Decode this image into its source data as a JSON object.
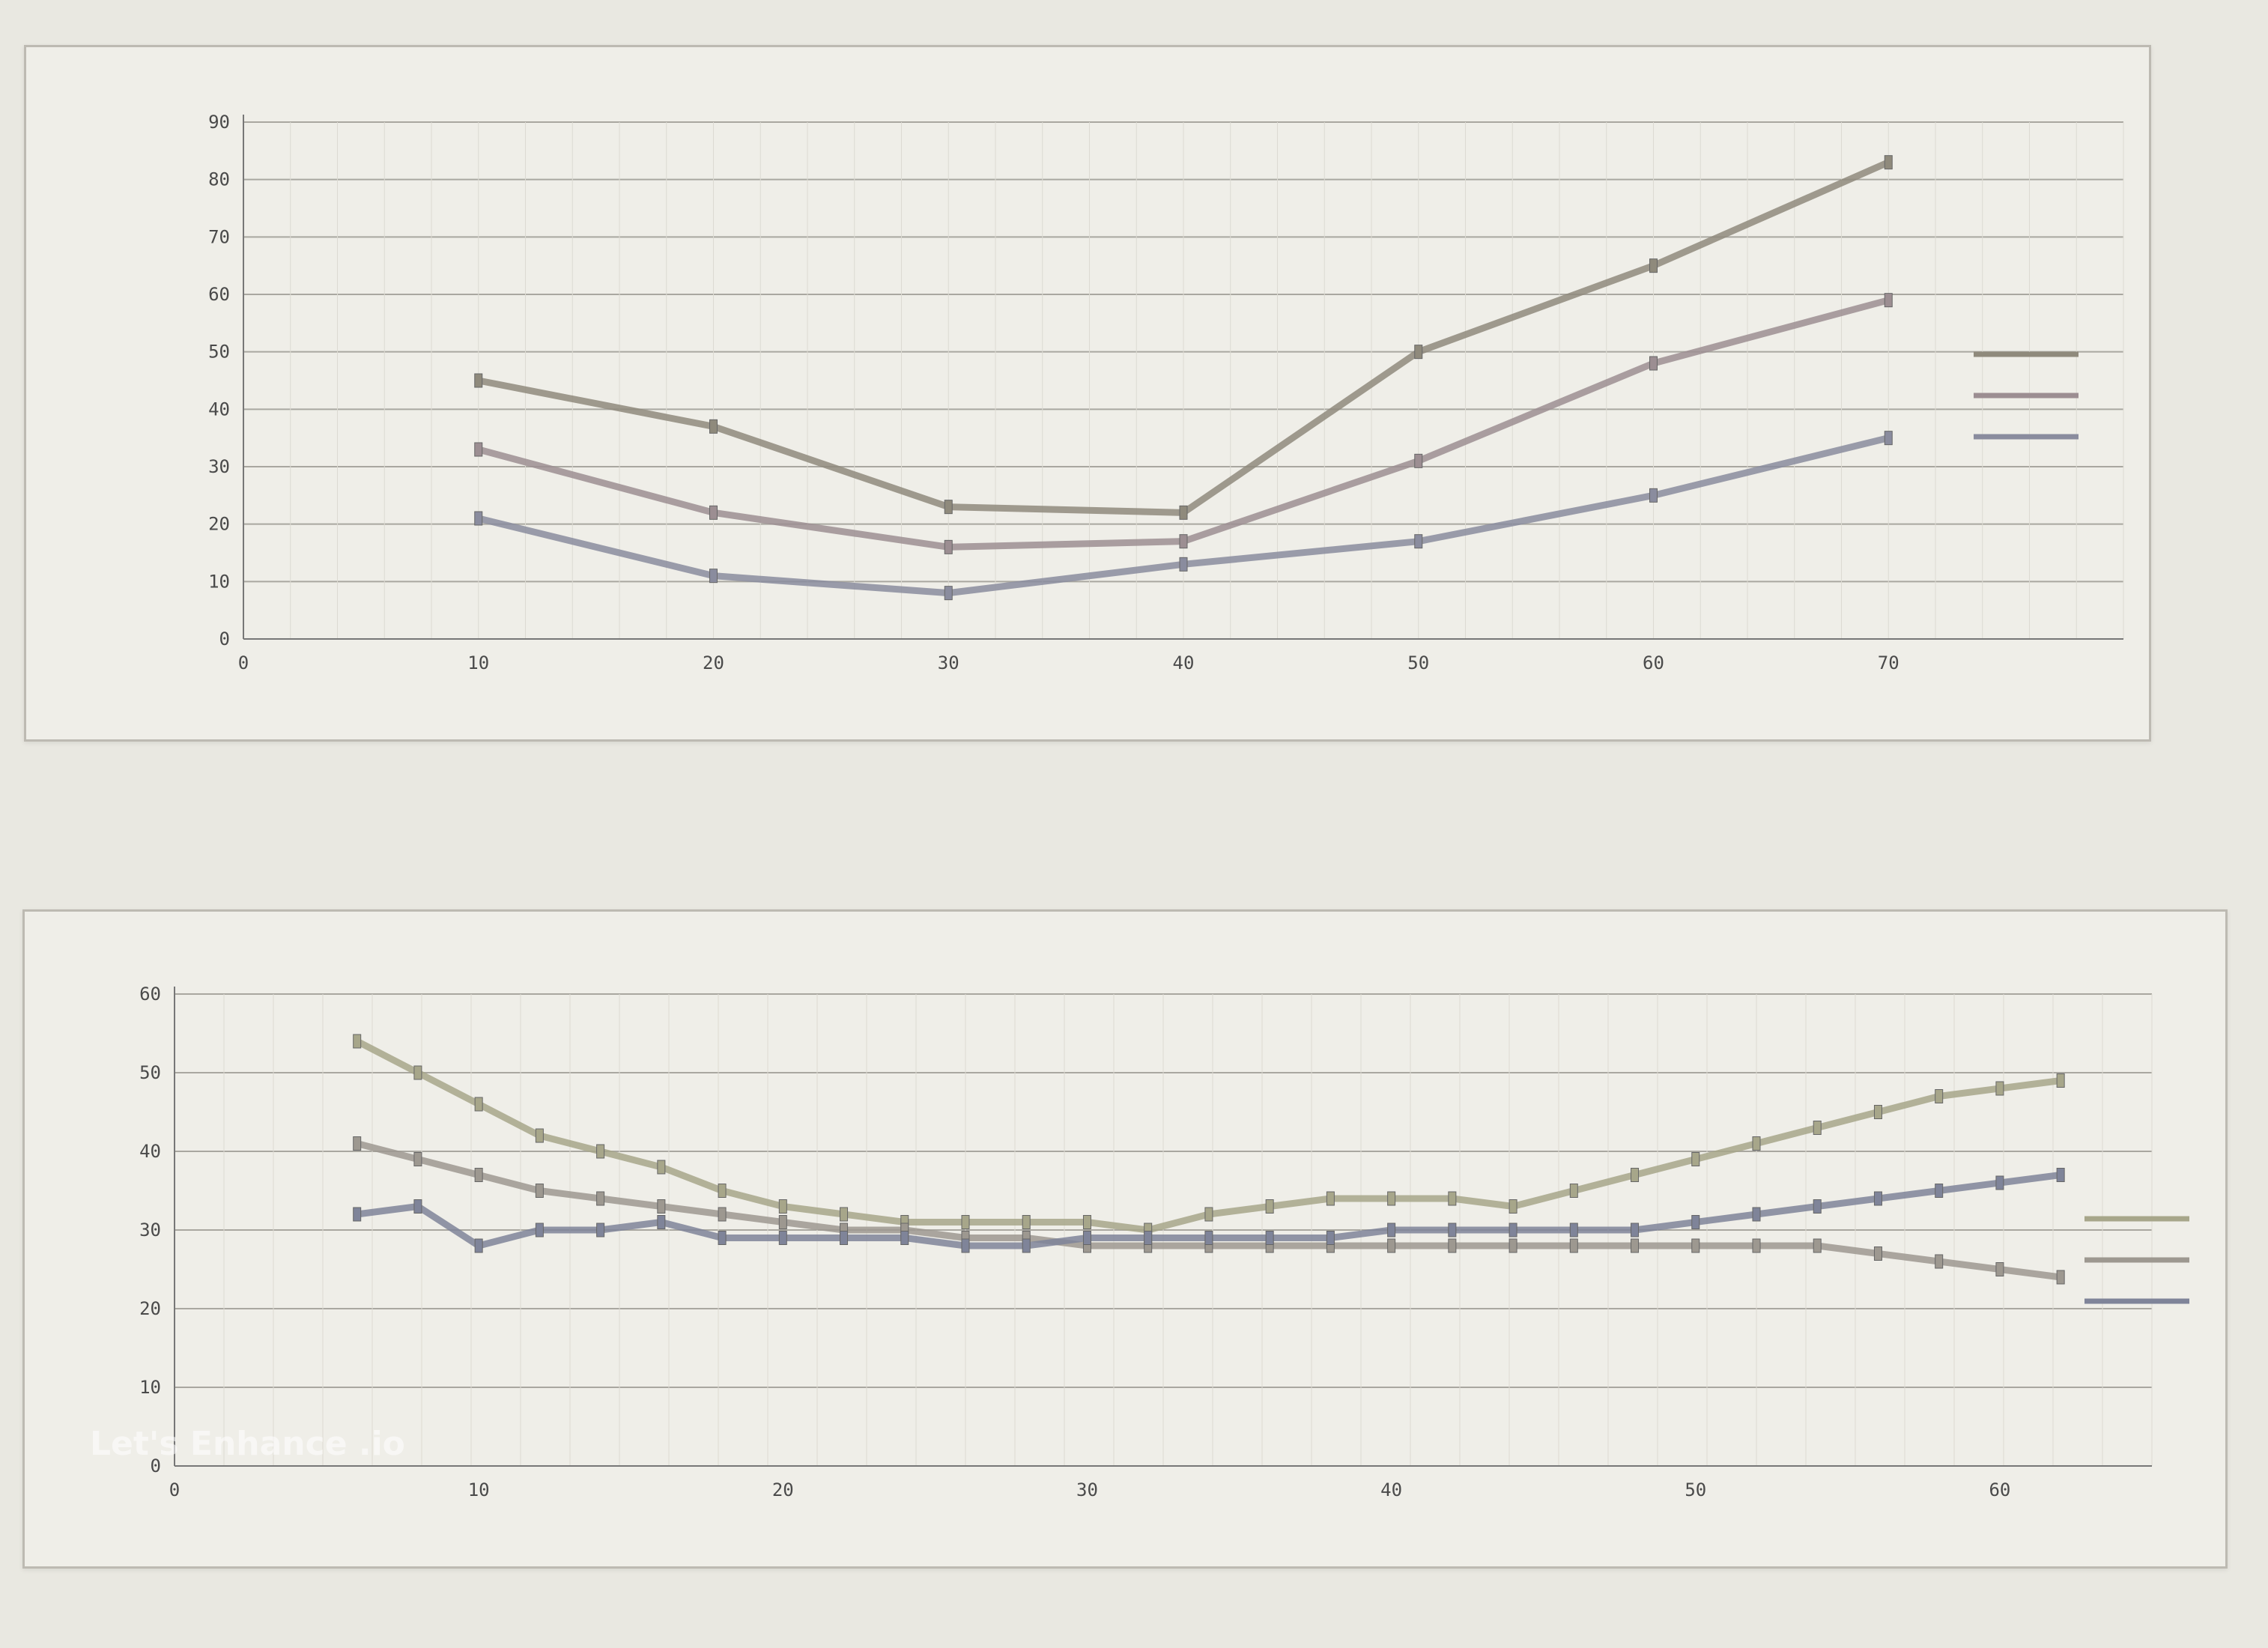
{
  "watermark": "Let's Enhance .io",
  "chart_data": [
    {
      "type": "line",
      "title": "",
      "xlabel": "",
      "ylabel": "",
      "x": [
        0,
        10,
        20,
        30,
        40,
        50,
        60,
        70
      ],
      "xlim": [
        0,
        80
      ],
      "ylim": [
        0,
        90
      ],
      "y_ticks": [
        0,
        10,
        20,
        30,
        40,
        50,
        60,
        70,
        80,
        90
      ],
      "grid": true,
      "legend_position": "right",
      "series": [
        {
          "color": "#8f8a7c",
          "x": [
            10,
            20,
            30,
            40,
            50,
            60,
            70
          ],
          "values": [
            45,
            37,
            23,
            22,
            50,
            65,
            83
          ]
        },
        {
          "color": "#9c8e92",
          "x": [
            10,
            20,
            30,
            40,
            50,
            60,
            70
          ],
          "values": [
            33,
            22,
            16,
            17,
            31,
            48,
            59
          ]
        },
        {
          "color": "#8a8c9e",
          "x": [
            10,
            20,
            30,
            40,
            50,
            60,
            70
          ],
          "values": [
            21,
            11,
            8,
            13,
            17,
            25,
            35
          ]
        }
      ]
    },
    {
      "type": "line",
      "title": "",
      "xlabel": "",
      "ylabel": "",
      "x": [
        0,
        10,
        20,
        30,
        40,
        50,
        60
      ],
      "xlim": [
        0,
        65
      ],
      "ylim": [
        0,
        60
      ],
      "y_ticks": [
        0,
        10,
        20,
        30,
        40,
        50,
        60
      ],
      "grid": true,
      "legend_position": "right",
      "series": [
        {
          "color": "#a7a68a",
          "x": [
            6,
            8,
            10,
            12,
            14,
            16,
            18,
            20,
            22,
            24,
            26,
            28,
            30,
            32,
            34,
            36,
            38,
            40,
            42,
            44,
            46,
            48,
            50,
            52,
            54,
            56,
            58,
            60,
            62
          ],
          "values": [
            54,
            50,
            46,
            42,
            40,
            38,
            35,
            33,
            32,
            31,
            31,
            31,
            31,
            30,
            32,
            33,
            34,
            34,
            34,
            33,
            35,
            37,
            39,
            41,
            43,
            45,
            47,
            48,
            49
          ]
        },
        {
          "color": "#9d9890",
          "x": [
            6,
            8,
            10,
            12,
            14,
            16,
            18,
            20,
            22,
            24,
            26,
            28,
            30,
            32,
            34,
            36,
            38,
            40,
            42,
            44,
            46,
            48,
            50,
            52,
            54,
            56,
            58,
            60,
            62
          ],
          "values": [
            41,
            39,
            37,
            35,
            34,
            33,
            32,
            31,
            30,
            30,
            29,
            29,
            28,
            28,
            28,
            28,
            28,
            28,
            28,
            28,
            28,
            28,
            28,
            28,
            28,
            27,
            26,
            25,
            24
          ]
        },
        {
          "color": "#7f8499",
          "x": [
            6,
            8,
            10,
            12,
            14,
            16,
            18,
            20,
            22,
            24,
            26,
            28,
            30,
            32,
            34,
            36,
            38,
            40,
            42,
            44,
            46,
            48,
            50,
            52,
            54,
            56,
            58,
            60,
            62
          ],
          "values": [
            32,
            33,
            28,
            30,
            30,
            31,
            29,
            29,
            29,
            29,
            28,
            28,
            29,
            29,
            29,
            29,
            29,
            30,
            30,
            30,
            30,
            30,
            31,
            32,
            33,
            34,
            35,
            36,
            37
          ]
        }
      ]
    }
  ]
}
